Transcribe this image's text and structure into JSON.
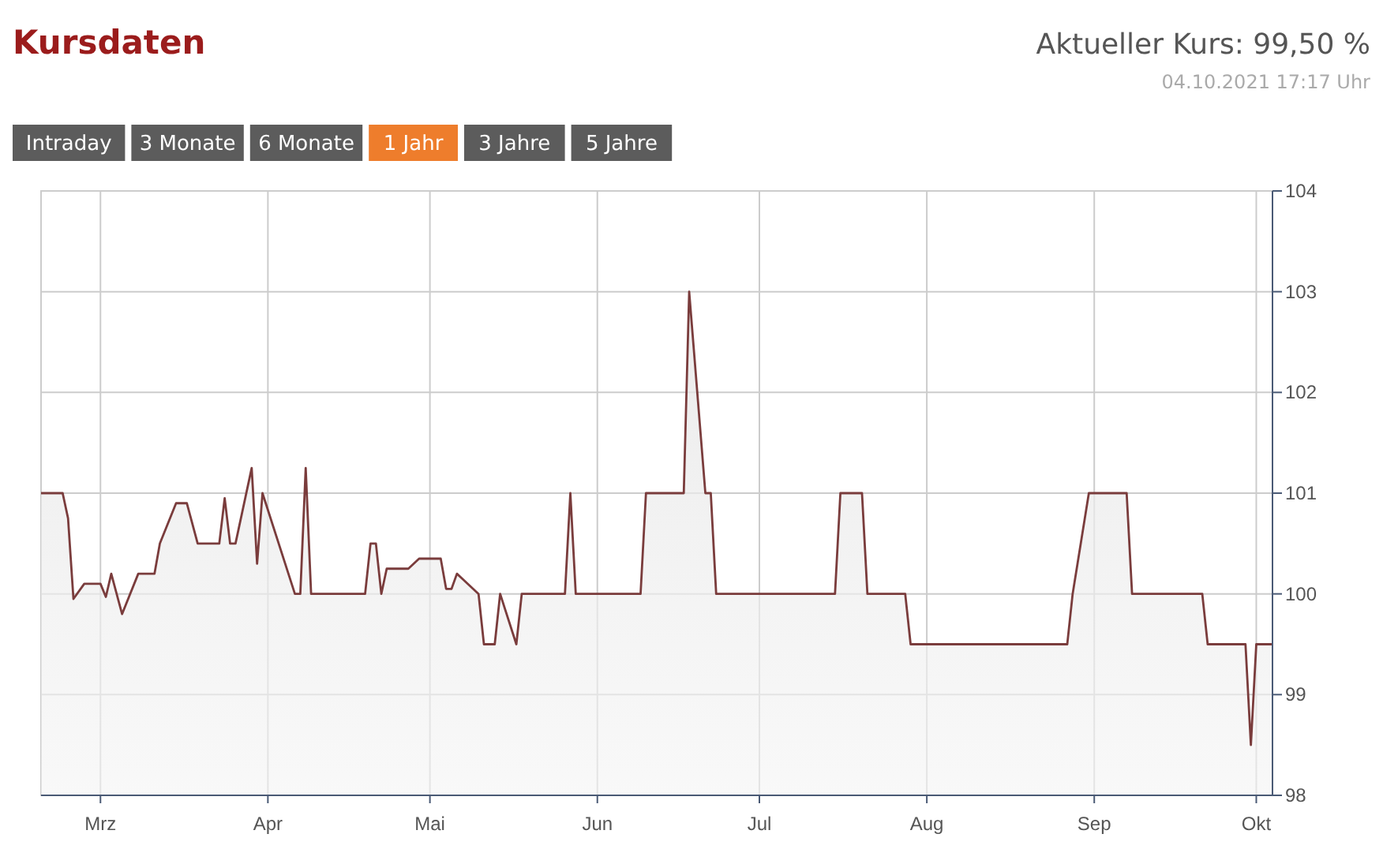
{
  "chart_data": {
    "type": "area",
    "title": "Kursdaten",
    "subtitle": "Aktueller Kurs: 99,50 %",
    "annotations": [
      "04.10.2021 17:17 Uhr",
      "Intraday",
      "3 Monate",
      "6 Monate",
      "1 Jahr",
      "3 Jahre",
      "5 Jahre"
    ],
    "x": [
      "2021-02-18",
      "2021-02-22",
      "2021-02-23",
      "2021-02-24",
      "2021-02-26",
      "2021-03-01",
      "2021-03-02",
      "2021-03-03",
      "2021-03-05",
      "2021-03-08",
      "2021-03-11",
      "2021-03-12",
      "2021-03-15",
      "2021-03-17",
      "2021-03-19",
      "2021-03-23",
      "2021-03-24",
      "2021-03-25",
      "2021-03-26",
      "2021-03-29",
      "2021-03-30",
      "2021-03-31",
      "2021-04-06",
      "2021-04-07",
      "2021-04-08",
      "2021-04-09",
      "2021-04-19",
      "2021-04-20",
      "2021-04-21",
      "2021-04-22",
      "2021-04-23",
      "2021-04-27",
      "2021-04-29",
      "2021-05-03",
      "2021-05-04",
      "2021-05-05",
      "2021-05-06",
      "2021-05-07",
      "2021-05-10",
      "2021-05-11",
      "2021-05-13",
      "2021-05-14",
      "2021-05-17",
      "2021-05-18",
      "2021-05-26",
      "2021-05-27",
      "2021-05-28",
      "2021-06-09",
      "2021-06-10",
      "2021-06-17",
      "2021-06-18",
      "2021-06-21",
      "2021-06-22",
      "2021-06-23",
      "2021-07-15",
      "2021-07-16",
      "2021-07-20",
      "2021-07-21",
      "2021-07-28",
      "2021-07-29",
      "2021-08-27",
      "2021-08-28",
      "2021-08-31",
      "2021-09-07",
      "2021-09-08",
      "2021-09-21",
      "2021-09-22",
      "2021-09-29",
      "2021-09-30",
      "2021-10-01",
      "2021-10-04"
    ],
    "series": [
      {
        "color": "#7a3c3c",
        "values": [
          101,
          101,
          100.75,
          99.95,
          100.1,
          100.1,
          99.97,
          100.2,
          99.8,
          100.2,
          100.2,
          100.5,
          100.9,
          100.9,
          100.5,
          100.5,
          100.95,
          100.5,
          100.5,
          101.25,
          100.3,
          101,
          100,
          100,
          101.25,
          100,
          100,
          100.5,
          100.5,
          100,
          100.25,
          100.25,
          100.35,
          100.35,
          100.05,
          100.05,
          100.2,
          100.15,
          100,
          99.5,
          99.5,
          100,
          99.5,
          100,
          100,
          101,
          100,
          100,
          101,
          101,
          103,
          101,
          101,
          100,
          100,
          101,
          101,
          100,
          100,
          99.5,
          99.5,
          100,
          101,
          101,
          100,
          100,
          99.5,
          99.5,
          98.5,
          99.5,
          99.5
        ]
      }
    ],
    "xlim": [
      "2021-02-18",
      "2021-10-04"
    ],
    "xticks": [
      {
        "value": "2021-03-01",
        "label": "Mrz"
      },
      {
        "value": "2021-04-01",
        "label": "Apr"
      },
      {
        "value": "2021-05-01",
        "label": "Mai"
      },
      {
        "value": "2021-06-01",
        "label": "Jun"
      },
      {
        "value": "2021-07-01",
        "label": "Jul"
      },
      {
        "value": "2021-08-01",
        "label": "Aug"
      },
      {
        "value": "2021-09-01",
        "label": "Sep"
      },
      {
        "value": "2021-10-01",
        "label": "Okt"
      }
    ],
    "ylim": [
      98,
      104
    ],
    "yticks": [
      98,
      99,
      100,
      101,
      102,
      103,
      104
    ],
    "grid": true
  }
}
